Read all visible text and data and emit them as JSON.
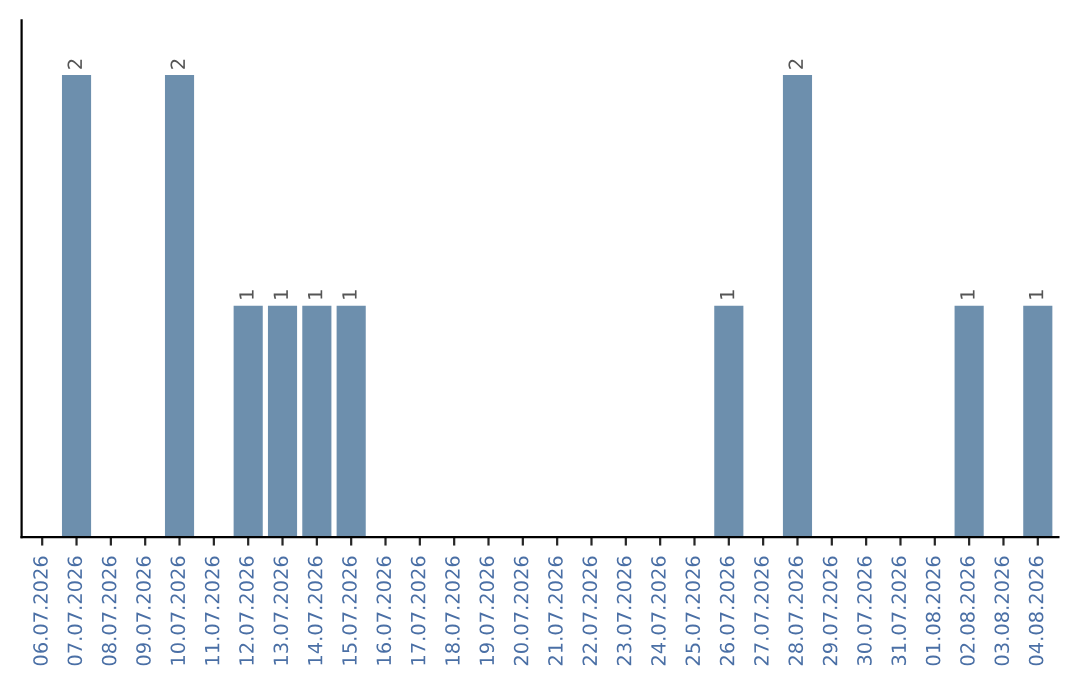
{
  "chart_data": {
    "type": "bar",
    "categories": [
      "06.07.2026",
      "07.07.2026",
      "08.07.2026",
      "09.07.2026",
      "10.07.2026",
      "11.07.2026",
      "12.07.2026",
      "13.07.2026",
      "14.07.2026",
      "15.07.2026",
      "16.07.2026",
      "17.07.2026",
      "18.07.2026",
      "19.07.2026",
      "20.07.2026",
      "21.07.2026",
      "22.07.2026",
      "23.07.2026",
      "24.07.2026",
      "25.07.2026",
      "26.07.2026",
      "27.07.2026",
      "28.07.2026",
      "29.07.2026",
      "30.07.2026",
      "31.07.2026",
      "01.08.2026",
      "02.08.2026",
      "03.08.2026",
      "04.08.2026"
    ],
    "values": [
      0,
      2,
      0,
      0,
      2,
      0,
      1,
      1,
      1,
      1,
      0,
      0,
      0,
      0,
      0,
      0,
      0,
      0,
      0,
      0,
      1,
      0,
      2,
      0,
      0,
      0,
      0,
      1,
      0,
      1
    ],
    "value_labels": [
      null,
      "2",
      null,
      null,
      "2",
      null,
      "1",
      "1",
      "1",
      "1",
      null,
      null,
      null,
      null,
      null,
      null,
      null,
      null,
      null,
      null,
      "1",
      null,
      "2",
      null,
      null,
      null,
      null,
      "1",
      null,
      "1"
    ],
    "color": "#6d8fad",
    "tick_labels": "x",
    "grid": false
  }
}
